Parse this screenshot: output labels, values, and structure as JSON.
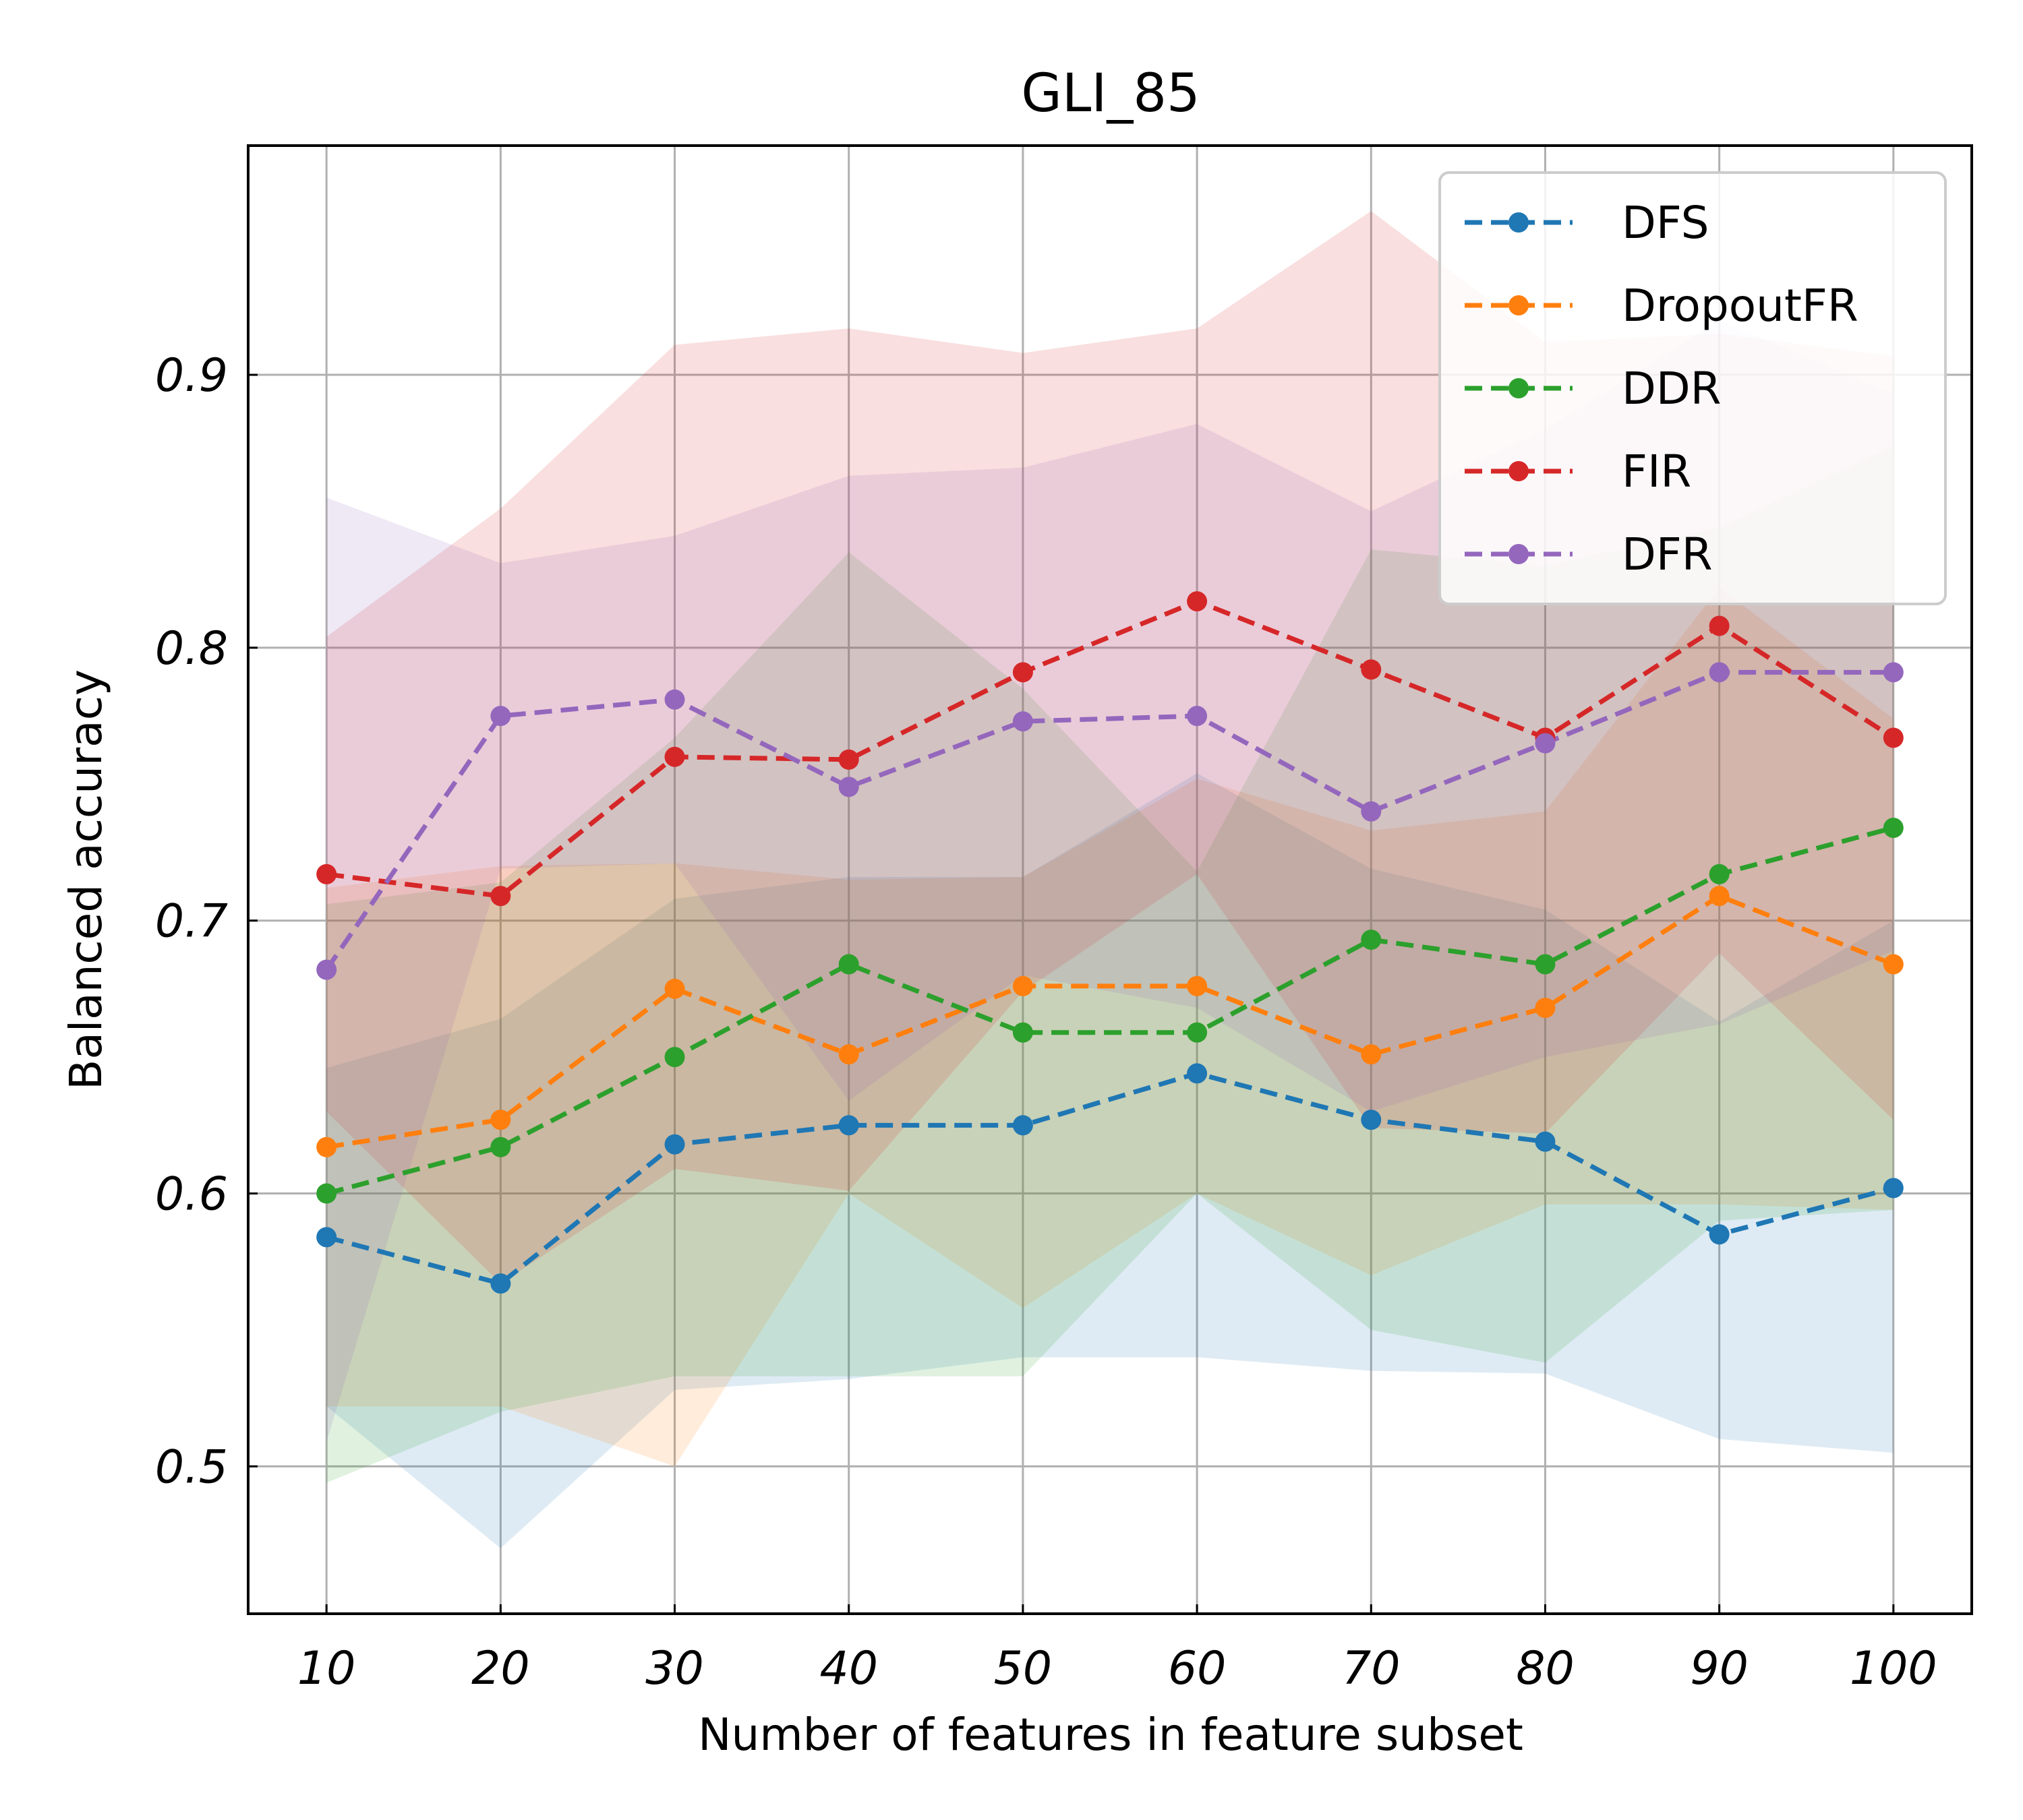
{
  "chart_data": {
    "type": "line",
    "title": "GLI_85",
    "xlabel": "Number of features in feature subset",
    "ylabel": "Balanced accuracy",
    "x": [
      10,
      20,
      30,
      40,
      50,
      60,
      70,
      80,
      90,
      100
    ],
    "xlim": [
      5.5,
      104.5
    ],
    "ylim": [
      0.446,
      0.984
    ],
    "xticks": [
      "10",
      "20",
      "30",
      "40",
      "50",
      "60",
      "70",
      "80",
      "90",
      "100"
    ],
    "yticks": [
      {
        "value": 0.5,
        "label": "0.5"
      },
      {
        "value": 0.6,
        "label": "0.6"
      },
      {
        "value": 0.7,
        "label": "0.7"
      },
      {
        "value": 0.8,
        "label": "0.8"
      },
      {
        "value": 0.9,
        "label": "0.9"
      }
    ],
    "grid": true,
    "legend": "top-right",
    "series": [
      {
        "name": "DFS",
        "color": "#1f77b4",
        "values": [
          0.584,
          0.567,
          0.618,
          0.625,
          0.625,
          0.644,
          0.627,
          0.619,
          0.585,
          0.602
        ],
        "lower": [
          0.522,
          0.47,
          0.528,
          0.532,
          0.54,
          0.54,
          0.535,
          0.534,
          0.51,
          0.505
        ],
        "upper": [
          0.646,
          0.664,
          0.708,
          0.716,
          0.716,
          0.754,
          0.719,
          0.704,
          0.663,
          0.7
        ]
      },
      {
        "name": "DropoutFR",
        "color": "#ff7f0e",
        "values": [
          0.617,
          0.627,
          0.675,
          0.651,
          0.676,
          0.676,
          0.651,
          0.668,
          0.709,
          0.684
        ],
        "lower": [
          0.522,
          0.522,
          0.5,
          0.6,
          0.558,
          0.6,
          0.57,
          0.596,
          0.596,
          0.594
        ],
        "upper": [
          0.712,
          0.72,
          0.721,
          0.715,
          0.716,
          0.752,
          0.733,
          0.74,
          0.822,
          0.774
        ]
      },
      {
        "name": "DDR",
        "color": "#2ca02c",
        "values": [
          0.6,
          0.617,
          0.65,
          0.684,
          0.659,
          0.659,
          0.693,
          0.684,
          0.717,
          0.734
        ],
        "lower": [
          0.494,
          0.52,
          0.533,
          0.533,
          0.533,
          0.6,
          0.55,
          0.538,
          0.59,
          0.594
        ],
        "upper": [
          0.706,
          0.714,
          0.767,
          0.835,
          0.785,
          0.718,
          0.836,
          0.83,
          0.844,
          0.874
        ]
      },
      {
        "name": "FIR",
        "color": "#d62728",
        "values": [
          0.717,
          0.709,
          0.76,
          0.759,
          0.791,
          0.817,
          0.792,
          0.767,
          0.808,
          0.767
        ],
        "lower": [
          0.63,
          0.567,
          0.609,
          0.601,
          0.674,
          0.717,
          0.624,
          0.622,
          0.688,
          0.627
        ],
        "upper": [
          0.804,
          0.851,
          0.911,
          0.917,
          0.908,
          0.917,
          0.96,
          0.912,
          0.915,
          0.907
        ]
      },
      {
        "name": "DFR",
        "color": "#9467bd",
        "values": [
          0.682,
          0.775,
          0.781,
          0.749,
          0.773,
          0.775,
          0.74,
          0.765,
          0.791,
          0.791
        ],
        "lower": [
          0.509,
          0.719,
          0.721,
          0.634,
          0.68,
          0.668,
          0.63,
          0.65,
          0.662,
          0.689
        ],
        "upper": [
          0.855,
          0.831,
          0.841,
          0.863,
          0.866,
          0.882,
          0.85,
          0.88,
          0.92,
          0.893
        ]
      }
    ]
  }
}
